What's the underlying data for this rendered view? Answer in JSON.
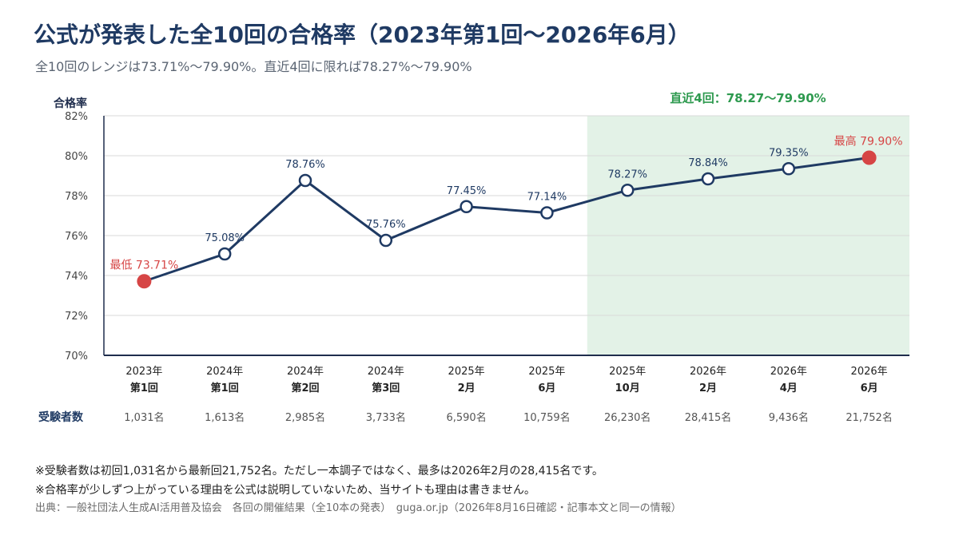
{
  "header": {
    "title": "公式が発表した全10回の合格率（2023年第1回〜2026年6月）",
    "subtitle": "全10回のレンジは73.71%〜79.90%。直近4回に限れば78.27%〜79.90%"
  },
  "chart_data": {
    "type": "line",
    "ylabel": "合格率",
    "ylim": [
      70,
      82
    ],
    "yticks": [
      "70%",
      "72%",
      "74%",
      "76%",
      "78%",
      "80%",
      "82%"
    ],
    "grid": true,
    "categories": [
      [
        "2023年",
        "第1回"
      ],
      [
        "2024年",
        "第1回"
      ],
      [
        "2024年",
        "第2回"
      ],
      [
        "2024年",
        "第3回"
      ],
      [
        "2025年",
        "2月"
      ],
      [
        "2025年",
        "6月"
      ],
      [
        "2025年",
        "10月"
      ],
      [
        "2026年",
        "2月"
      ],
      [
        "2026年",
        "4月"
      ],
      [
        "2026年",
        "6月"
      ]
    ],
    "values": [
      73.71,
      75.08,
      78.76,
      75.76,
      77.45,
      77.14,
      78.27,
      78.84,
      79.35,
      79.9
    ],
    "data_labels": [
      "",
      "75.08%",
      "78.76%",
      "75.76%",
      "77.45%",
      "77.14%",
      "78.27%",
      "78.84%",
      "79.35%",
      ""
    ],
    "annotations": {
      "min_label": "最低 73.71%",
      "max_label": "最高 79.90%",
      "recent_label": "直近4回：78.27〜79.90%"
    },
    "highlight_start_index": 6,
    "examinees_label": "受験者数",
    "examinees": [
      "1,031名",
      "1,613名",
      "2,985名",
      "3,733名",
      "6,590名",
      "10,759名",
      "26,230名",
      "28,415名",
      "9,436名",
      "21,752名"
    ],
    "colors": {
      "line": "#1f3a63",
      "extreme": "#d64545",
      "highlight_fill": "#e3f2e7",
      "highlight_text": "#2e9a4f",
      "grid": "#d9d9d9"
    }
  },
  "footnotes": {
    "note1": "※受験者数は初回1,031名から最新回21,752名。ただし一本調子ではなく、最多は2026年2月の28,415名です。",
    "note2": "※合格率が少しずつ上がっている理由を公式は説明していないため、当サイトも理由は書きません。",
    "source": "出典：一般社団法人生成AI活用普及協会　各回の開催結果（全10本の発表）　guga.or.jp（2026年8月16日確認・記事本文と同一の情報）"
  }
}
